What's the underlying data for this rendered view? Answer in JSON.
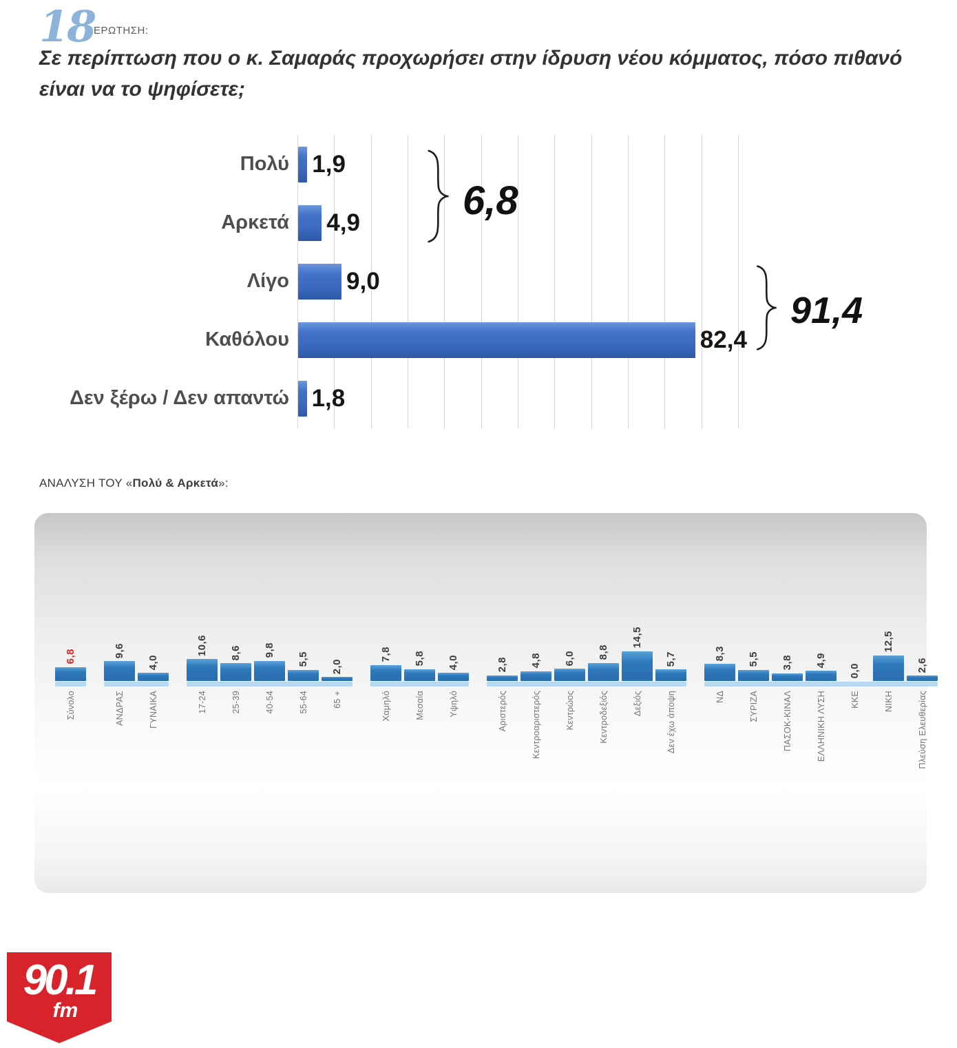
{
  "header": {
    "question_number": "18",
    "question_label": "ΕΡΩΤΗΣΗ:",
    "question_text": "Σε περίπτωση που ο κ. Σαμαράς προχωρήσει στην ίδρυση νέου κόμματος, πόσο πιθανό είναι να το ψηφίσετε;"
  },
  "analysis_heading": {
    "prefix": "ΑΝΑΛΥΣΗ ΤΟΥ «",
    "bold": "Πολύ & Αρκετά",
    "suffix": "»:"
  },
  "logo": {
    "frequency": "90.1",
    "band": "fm",
    "color": "#d8232a"
  },
  "colors": {
    "main_bar": "#3b6cc5",
    "mini_bar": "#2e78bb",
    "mini_baseline": "#b7d9ef",
    "highlight_value": "#e02424",
    "gridline": "#d4d4d4",
    "question_accent_blue": "#8cb4da"
  },
  "chart_data": [
    {
      "type": "bar",
      "orientation": "horizontal",
      "title": "",
      "categories": [
        "Πολύ",
        "Αρκετά",
        "Λίγο",
        "Καθόλου",
        "Δεν ξέρω / Δεν απαντώ"
      ],
      "values": [
        1.9,
        4.9,
        9.0,
        82.4,
        1.8
      ],
      "value_labels": [
        "1,9",
        "4,9",
        "9,0",
        "82,4",
        "1,8"
      ],
      "xlim": [
        0,
        92
      ],
      "grid": true,
      "legend": "none",
      "annotations": [
        {
          "label": "6,8",
          "value": 6.8,
          "spans": [
            "Πολύ",
            "Αρκετά"
          ]
        },
        {
          "label": "91,4",
          "value": 91.4,
          "spans": [
            "Λίγο",
            "Καθόλου"
          ]
        }
      ]
    },
    {
      "type": "bar",
      "orientation": "vertical",
      "title": "Ανάλυση του «Πολύ & Αρκετά» κατά ομάδα",
      "grid": false,
      "legend": "none",
      "groups": [
        {
          "name": "total",
          "items": [
            {
              "label": "Σύνολο",
              "value": 6.8,
              "value_label": "6,8",
              "highlight": true
            }
          ]
        },
        {
          "name": "gender",
          "items": [
            {
              "label": "ΑΝΔΡΑΣ",
              "value": 9.6,
              "value_label": "9,6"
            },
            {
              "label": "ΓΥΝΑΙΚΑ",
              "value": 4.0,
              "value_label": "4,0"
            }
          ]
        },
        {
          "name": "age",
          "items": [
            {
              "label": "17-24",
              "value": 10.6,
              "value_label": "10,6"
            },
            {
              "label": "25-39",
              "value": 8.6,
              "value_label": "8,6"
            },
            {
              "label": "40-54",
              "value": 9.8,
              "value_label": "9,8"
            },
            {
              "label": "55-64",
              "value": 5.5,
              "value_label": "5,5"
            },
            {
              "label": "65 +",
              "value": 2.0,
              "value_label": "2,0"
            }
          ]
        },
        {
          "name": "class",
          "items": [
            {
              "label": "Χαμηλό",
              "value": 7.8,
              "value_label": "7,8"
            },
            {
              "label": "Μεσαία",
              "value": 5.8,
              "value_label": "5,8"
            },
            {
              "label": "Υψηλό",
              "value": 4.0,
              "value_label": "4,0"
            }
          ]
        },
        {
          "name": "ideology",
          "items": [
            {
              "label": "Αριστερός",
              "value": 2.8,
              "value_label": "2,8"
            },
            {
              "label": "Κεντροαριστερός",
              "value": 4.8,
              "value_label": "4,8"
            },
            {
              "label": "Κεντρώος",
              "value": 6.0,
              "value_label": "6,0"
            },
            {
              "label": "Κεντροδεξιός",
              "value": 8.8,
              "value_label": "8,8"
            },
            {
              "label": "Δεξιός",
              "value": 14.5,
              "value_label": "14,5"
            },
            {
              "label": "Δεν έχω άποψη",
              "value": 5.7,
              "value_label": "5,7"
            }
          ]
        },
        {
          "name": "party",
          "items": [
            {
              "label": "ΝΔ",
              "value": 8.3,
              "value_label": "8,3"
            },
            {
              "label": "ΣΥΡΙΖΑ",
              "value": 5.5,
              "value_label": "5,5"
            },
            {
              "label": "ΠΑΣΟΚ-ΚΙΝΑΛ",
              "value": 3.8,
              "value_label": "3,8"
            },
            {
              "label": "ΕΛΛΗΝΙΚΗ ΛΥΣΗ",
              "value": 4.9,
              "value_label": "4,9"
            },
            {
              "label": "ΚΚΕ",
              "value": 0.0,
              "value_label": "0,0"
            },
            {
              "label": "ΝΙΚΗ",
              "value": 12.5,
              "value_label": "12,5"
            },
            {
              "label": "Πλεύση Ελευθερίας",
              "value": 2.6,
              "value_label": "2,6"
            }
          ]
        }
      ]
    }
  ]
}
